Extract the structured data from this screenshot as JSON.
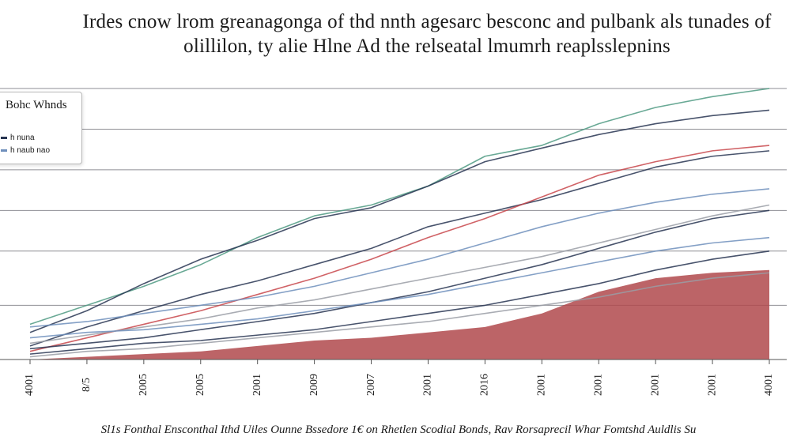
{
  "chart_data": {
    "type": "line",
    "title": "Irdes cnow lrom greanagonga of thd nnth agesarc besconc and pulbank als tunades of olillilon, ty alie Hlne Ad the relseatal lmumrh reaplsslepnins",
    "xlabel": "",
    "ylabel": "",
    "x": [
      "4001",
      "8/5",
      "2005",
      "2005",
      "2001",
      "2009",
      "2007",
      "2001",
      "2016",
      "2001",
      "2001",
      "2001",
      "2001",
      "4001"
    ],
    "ylim": [
      0,
      100
    ],
    "grid": true,
    "legend": {
      "placement": "top-left",
      "title": "Bohc Whnds",
      "entries": [
        "h  nuna",
        "h  naub nao"
      ]
    },
    "colors": {
      "green": "#4f9a82",
      "navy": "#283552",
      "red": "#c8474b",
      "blue": "#6f8fbc",
      "gray": "#9a9da6",
      "fill_red": "#b0494c"
    },
    "area": {
      "name": "",
      "color": "#b0494c",
      "values": [
        0,
        1,
        2,
        3,
        5,
        7,
        8,
        10,
        12,
        17,
        25,
        30,
        32,
        33
      ]
    },
    "series": [
      {
        "color": "#4f9a82",
        "values": [
          13,
          20,
          27,
          35,
          45,
          53,
          57,
          64,
          75,
          79,
          87,
          93,
          97,
          100
        ]
      },
      {
        "color": "#283552",
        "values": [
          10,
          18,
          28,
          37,
          44,
          52,
          56,
          64,
          73,
          78,
          83,
          87,
          90,
          92
        ]
      },
      {
        "color": "#283552",
        "values": [
          5,
          12,
          18,
          24,
          29,
          35,
          41,
          49,
          54,
          59,
          65,
          71,
          75,
          77
        ]
      },
      {
        "color": "#c8474b",
        "values": [
          3,
          8,
          13,
          18,
          24,
          30,
          37,
          45,
          52,
          60,
          68,
          73,
          77,
          79
        ]
      },
      {
        "color": "#6f8fbc",
        "values": [
          12,
          14,
          17,
          20,
          23,
          27,
          32,
          37,
          43,
          49,
          54,
          58,
          61,
          63
        ]
      },
      {
        "color": "#283552",
        "values": [
          4,
          6,
          8,
          11,
          14,
          17,
          21,
          25,
          30,
          35,
          41,
          47,
          52,
          55
        ]
      },
      {
        "color": "#9a9da6",
        "values": [
          6,
          9,
          12,
          15,
          19,
          22,
          26,
          30,
          34,
          38,
          43,
          48,
          53,
          57
        ]
      },
      {
        "color": "#283552",
        "values": [
          2,
          4,
          6,
          7,
          9,
          11,
          14,
          17,
          20,
          24,
          28,
          33,
          37,
          40
        ]
      },
      {
        "color": "#6f8fbc",
        "values": [
          8,
          10,
          11,
          13,
          15,
          18,
          21,
          24,
          28,
          32,
          36,
          40,
          43,
          45
        ]
      },
      {
        "color": "#9a9da6",
        "values": [
          1,
          3,
          4,
          6,
          8,
          10,
          12,
          14,
          17,
          20,
          23,
          27,
          30,
          32
        ]
      }
    ],
    "source": "Sl1s Fonthal Ensconthal Ithd Uiles Ounne Bssedore 1€ on Rhetlen Scodial Bonds, Rav Rorsaprecil Whar Fomtshd Auldlis Su"
  }
}
